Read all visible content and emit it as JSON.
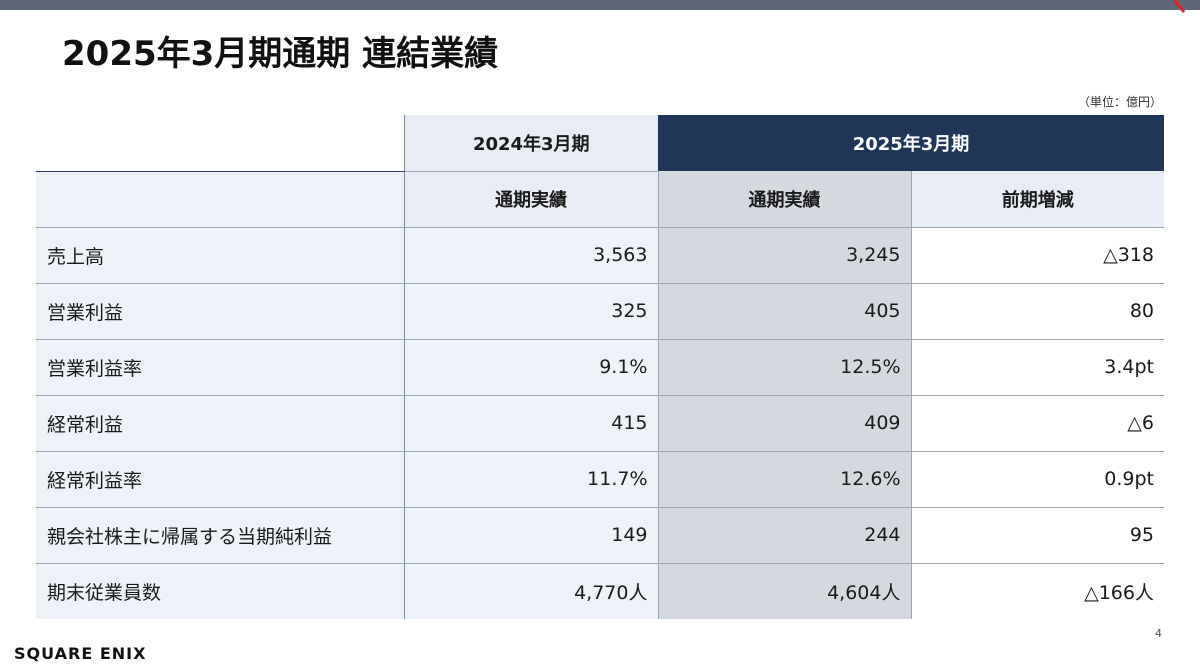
{
  "slide": {
    "title": "2025年3月期通期 連結業績",
    "unit_note": "（単位：億円）",
    "page_number": "4",
    "logo_text": "SQUARE ENIX"
  },
  "colors": {
    "header_dark": "#1f3658",
    "header_light": "#e8edf5",
    "current_column": "#d4d9e0",
    "top_bar": "#5f6878",
    "corner_accent": "#d9242b"
  },
  "table": {
    "header_row1": {
      "prev_period": "2024年3月期",
      "cur_period": "2025年3月期"
    },
    "header_row2": {
      "prev_actual": "通期実績",
      "cur_actual": "通期実績",
      "yoy_change": "前期増減"
    },
    "rows": [
      {
        "label": "売上高",
        "prev": "3,563",
        "cur": "3,245",
        "diff": "△318"
      },
      {
        "label": "営業利益",
        "prev": "325",
        "cur": "405",
        "diff": "80"
      },
      {
        "label": "営業利益率",
        "prev": "9.1%",
        "cur": "12.5%",
        "diff": "3.4pt"
      },
      {
        "label": "経常利益",
        "prev": "415",
        "cur": "409",
        "diff": "△6"
      },
      {
        "label": "経常利益率",
        "prev": "11.7%",
        "cur": "12.6%",
        "diff": "0.9pt"
      },
      {
        "label": "親会社株主に帰属する当期純利益",
        "prev": "149",
        "cur": "244",
        "diff": "95"
      },
      {
        "label": "期末従業員数",
        "prev": "4,770人",
        "cur": "4,604人",
        "diff": "△166人"
      }
    ]
  }
}
